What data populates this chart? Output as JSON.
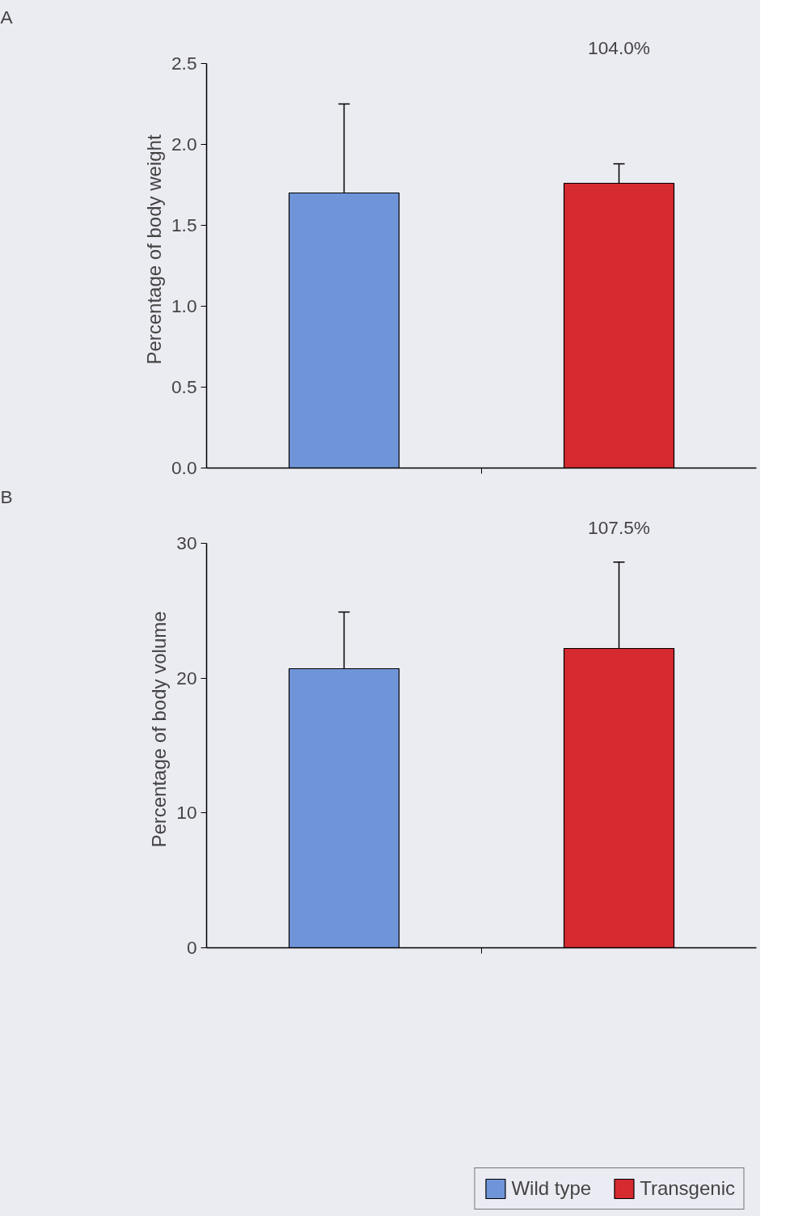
{
  "chart_data": [
    {
      "type": "bar",
      "ylabel": "Percentage of body weight",
      "categories": [
        null,
        null
      ],
      "series": [
        {
          "color": "#6f95d8",
          "values": [
            1.7,
            null
          ],
          "errors": [
            0.55,
            null
          ]
        },
        {
          "color": "#d42a30",
          "values": [
            null,
            1.76
          ],
          "errors": [
            null,
            0.12
          ]
        }
      ],
      "ylim": [
        0,
        2.5
      ],
      "yticks": [
        {
          "value": 0,
          "label": "0.0"
        },
        0.5,
        {
          "value": 1,
          "label": "1.0"
        },
        1.5,
        {
          "value": 2,
          "label": "2.0"
        },
        2.5
      ],
      "annotations": [
        "A",
        "104.0%"
      ],
      "grid": false,
      "legend": false,
      "tick_labels": "y"
    },
    {
      "type": "bar",
      "ylabel": "Percentage of body volume",
      "categories": [
        null,
        null
      ],
      "series": [
        {
          "name": "Wild type",
          "color": "#6f95d8",
          "values": [
            20.7,
            null
          ],
          "errors": [
            4.2,
            null
          ]
        },
        {
          "name": "Transgenic",
          "color": "#d42a30",
          "values": [
            null,
            22.2
          ],
          "errors": [
            null,
            6.4
          ]
        }
      ],
      "ylim": [
        0,
        30
      ],
      "yticks": [
        0,
        10,
        20,
        30
      ],
      "annotations": [
        "B",
        "107.5%"
      ],
      "grid": false,
      "legend": "bottom",
      "tick_labels": "y"
    }
  ]
}
